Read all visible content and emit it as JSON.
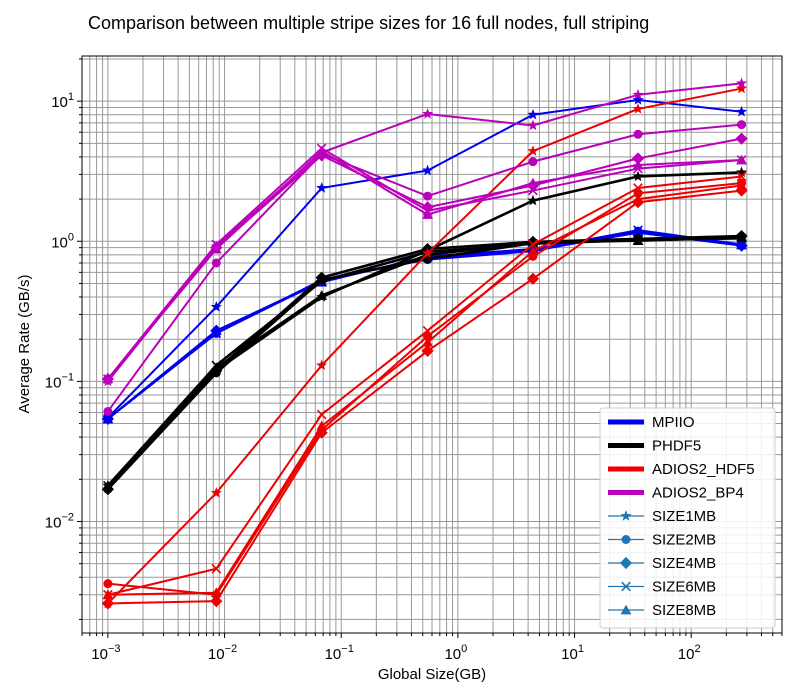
{
  "chart_data": {
    "type": "line",
    "title": "Comparison between multiple stripe sizes for 16 full nodes, full striping",
    "xlabel": "Global Size(GB)",
    "ylabel": "Average Rate (GB/s)",
    "xscale": "log",
    "yscale": "log",
    "xlim": [
      0.0006,
      600
    ],
    "ylim": [
      0.0016,
      21
    ],
    "x_tick_labels": [
      {
        "base": "10",
        "exp": "−3",
        "value": 0.001
      },
      {
        "base": "10",
        "exp": "−2",
        "value": 0.01
      },
      {
        "base": "10",
        "exp": "−1",
        "value": 0.1
      },
      {
        "base": "10",
        "exp": "0",
        "value": 1
      },
      {
        "base": "10",
        "exp": "1",
        "value": 10
      },
      {
        "base": "10",
        "exp": "2",
        "value": 100
      }
    ],
    "y_tick_labels": [
      {
        "base": "10",
        "exp": "−2",
        "value": 0.01
      },
      {
        "base": "10",
        "exp": "−1",
        "value": 0.1
      },
      {
        "base": "10",
        "exp": "0",
        "value": 1
      },
      {
        "base": "10",
        "exp": "1",
        "value": 10
      }
    ],
    "grid": true,
    "legend_position": "bottom-right",
    "x": [
      0.001,
      0.0085,
      0.068,
      0.55,
      4.4,
      35,
      270
    ],
    "libraries": [
      {
        "name": "MPIIO",
        "color": "#0000ee"
      },
      {
        "name": "PHDF5",
        "color": "#000000"
      },
      {
        "name": "ADIOS2_HDF5",
        "color": "#ee0000"
      },
      {
        "name": "ADIOS2_BP4",
        "color": "#bb00bb"
      }
    ],
    "stripe_sizes": [
      {
        "name": "SIZE1MB",
        "marker": "star"
      },
      {
        "name": "SIZE2MB",
        "marker": "circle"
      },
      {
        "name": "SIZE4MB",
        "marker": "diamond"
      },
      {
        "name": "SIZE6MB",
        "marker": "x"
      },
      {
        "name": "SIZE8MB",
        "marker": "triangle"
      }
    ],
    "legend_marker_color": "#1f77b4",
    "series": [
      {
        "library": "MPIIO",
        "size": "SIZE1MB",
        "values": [
          0.055,
          0.34,
          2.4,
          3.2,
          8.0,
          10.2,
          8.4
        ]
      },
      {
        "library": "MPIIO",
        "size": "SIZE2MB",
        "values": [
          0.054,
          0.22,
          0.53,
          0.74,
          0.85,
          1.18,
          0.94
        ]
      },
      {
        "library": "MPIIO",
        "size": "SIZE4MB",
        "values": [
          0.054,
          0.23,
          0.52,
          0.76,
          0.86,
          1.15,
          0.93
        ]
      },
      {
        "library": "MPIIO",
        "size": "SIZE6MB",
        "values": [
          0.054,
          0.22,
          0.52,
          0.77,
          0.87,
          1.2,
          0.95
        ]
      },
      {
        "library": "MPIIO",
        "size": "SIZE8MB",
        "values": [
          0.054,
          0.23,
          0.51,
          0.78,
          0.88,
          1.17,
          0.94
        ]
      },
      {
        "library": "PHDF5",
        "size": "SIZE1MB",
        "values": [
          0.018,
          0.12,
          0.4,
          0.86,
          1.95,
          2.9,
          3.1
        ]
      },
      {
        "library": "PHDF5",
        "size": "SIZE2MB",
        "values": [
          0.017,
          0.115,
          0.53,
          0.75,
          0.97,
          1.03,
          1.08
        ]
      },
      {
        "library": "PHDF5",
        "size": "SIZE4MB",
        "values": [
          0.017,
          0.12,
          0.55,
          0.88,
          0.99,
          1.04,
          1.09
        ]
      },
      {
        "library": "PHDF5",
        "size": "SIZE6MB",
        "values": [
          0.018,
          0.13,
          0.52,
          0.84,
          0.96,
          1.02,
          1.05
        ]
      },
      {
        "library": "PHDF5",
        "size": "SIZE8MB",
        "values": [
          0.018,
          0.125,
          0.41,
          0.8,
          0.98,
          1.01,
          1.07
        ]
      },
      {
        "library": "ADIOS2_HDF5",
        "size": "SIZE1MB",
        "values": [
          0.0026,
          0.016,
          0.13,
          0.82,
          4.4,
          8.8,
          12.3
        ]
      },
      {
        "library": "ADIOS2_HDF5",
        "size": "SIZE2MB",
        "values": [
          0.0036,
          0.003,
          0.045,
          0.21,
          0.78,
          2.2,
          2.6
        ]
      },
      {
        "library": "ADIOS2_HDF5",
        "size": "SIZE4MB",
        "values": [
          0.0026,
          0.0027,
          0.043,
          0.165,
          0.54,
          1.9,
          2.3
        ]
      },
      {
        "library": "ADIOS2_HDF5",
        "size": "SIZE6MB",
        "values": [
          0.003,
          0.0046,
          0.058,
          0.23,
          0.95,
          2.4,
          2.9
        ]
      },
      {
        "library": "ADIOS2_HDF5",
        "size": "SIZE8MB",
        "values": [
          0.003,
          0.0031,
          0.048,
          0.19,
          0.85,
          2.0,
          2.5
        ]
      },
      {
        "library": "ADIOS2_BP4",
        "size": "SIZE1MB",
        "values": [
          0.1,
          0.92,
          4.3,
          8.1,
          6.7,
          11.1,
          13.4
        ]
      },
      {
        "library": "ADIOS2_BP4",
        "size": "SIZE2MB",
        "values": [
          0.061,
          0.7,
          4.2,
          2.1,
          3.7,
          5.8,
          6.8
        ]
      },
      {
        "library": "ADIOS2_BP4",
        "size": "SIZE4MB",
        "values": [
          0.104,
          0.9,
          4.1,
          1.75,
          2.5,
          3.9,
          5.4
        ]
      },
      {
        "library": "ADIOS2_BP4",
        "size": "SIZE6MB",
        "values": [
          0.104,
          0.95,
          4.6,
          1.65,
          2.3,
          3.3,
          3.8
        ]
      },
      {
        "library": "ADIOS2_BP4",
        "size": "SIZE8MB",
        "values": [
          0.104,
          0.88,
          4.4,
          1.55,
          2.6,
          3.5,
          3.8
        ]
      }
    ]
  }
}
